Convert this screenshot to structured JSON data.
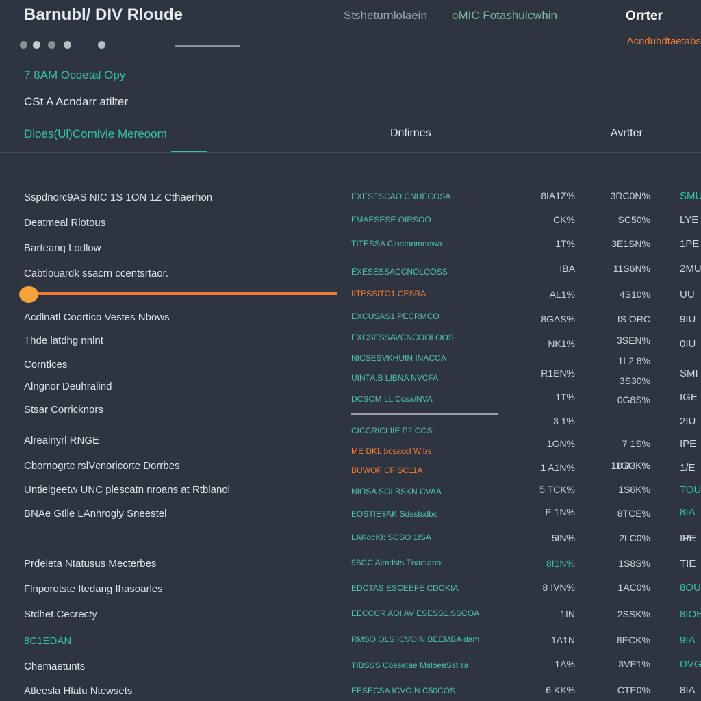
{
  "header": {
    "title": "Barnubl/ DIV Rloude",
    "nav": [
      "Stsheturnlolaein",
      "oMIC Fotashulcwhin",
      "Orrter"
    ],
    "action": "Acnduhdtaetabs"
  },
  "summary": [
    "7 8AM Ocoetal Opy",
    "CSt A Acndarr atilter"
  ],
  "tabs": [
    "Dloes(Ul)Comivle Mereoom",
    "Dnfirnes",
    "Avrtter"
  ],
  "rows": [
    {
      "label": "Sspdnorc9AS NIC 1S 1ON 1Z Cthaerhon",
      "code": "EXESESCAO CNHECOSA",
      "v1": "8IA1Z%",
      "v2": "3RC0N%",
      "v3": "SMU"
    },
    {
      "label": "Deatmeal Rlotous",
      "code": "FMAESESE OIRSOO",
      "v1": "CK%",
      "v2": "SC50%",
      "v3": "LYE"
    },
    {
      "label": "Barteanq Lodlow",
      "code": "TITESSA Cloatanmoowa",
      "v1": "1T%",
      "v2": "3E1SN%",
      "v3": "1PE"
    },
    {
      "label": "Cabtlouardk ssacrn ccentsrtaor.",
      "code": "EXESESSACCNOLOOSS",
      "v1": "IBA",
      "v2": "11S6N%",
      "v3": "2MU"
    },
    {
      "code": "IITESSITO1 CESRA",
      "v1": "AL1%",
      "v2": "4S10%",
      "v3": "UU"
    },
    {
      "label": "Acdlnatl Coortico Vestes Nbows",
      "code": "EXCUSAS1 PECRMCO",
      "v1": "8GAS%",
      "v2": "IS ORC",
      "v3": "9IU"
    },
    {
      "label": "Thde latdhg nnlnt",
      "code": "EXCSESSAVCNCOOLOOS",
      "v1": "NK1%",
      "v2": "3SEN%",
      "v3": "0IU"
    },
    {
      "label": "Corntlces",
      "code": "NICSESVKHUIN INACCA",
      "v1": "R1EN%",
      "v2": "1L2 8%",
      "v3": "SMI"
    },
    {
      "label": "Alngnor Deuhralind",
      "code": "UINTA.B LIBNA NVCFA",
      "v1": "1T%",
      "v2": "3S30%",
      "v3": "IGE"
    },
    {
      "label": "Stsar Corricknors",
      "code": "DCSOM LL Ccsa/NVA",
      "v1": "3 1%",
      "v2": "0G8S%",
      "v3": "2IU"
    },
    {
      "label": "Alrealnyrl RNGE",
      "code": "CICCRICLIIE P2 COS",
      "v1": "1GN%",
      "v2": "7 1S%",
      "v3": "IPE"
    },
    {
      "label": "Cbornogrtc rslVcnoricorte Dorrbes",
      "code": "ME DKL bcsaccl Wlbs",
      "v1": "1 A1N%",
      "v2": "0.83K%",
      "v3": "1/E"
    },
    {
      "label": "Untielgeetw UNC plescatn nroans at Rtblanol",
      "code": "BUWOF CF SC11A",
      "v1": "5 TCK%",
      "v2": "11GCK%",
      "v3": "TOU"
    },
    {
      "label": "BNAe Gtlle LAnhrogly Sneestel",
      "code": "NIOSA SOI BSKN CVAA",
      "v1": "E 1N%",
      "v2": "1S6K%",
      "v3": "8IA"
    },
    {
      "code": "EOSTIEYAK Sdsstsdbo",
      "v1": "5IN%",
      "v2": "8TCE%",
      "v3": "IPE"
    },
    {
      "code": "LAKocKI: SCSO 1ISA",
      "v1": "5IN%",
      "v2": "2LC0%",
      "v3": "TIE"
    },
    {
      "label": "Prdeleta Ntatusus Mecterbes",
      "code": "9SCC Aimdsts Tnaetanol",
      "v1": "8I1N%",
      "v2": "1S8S%",
      "v3": "TIE"
    },
    {
      "label": "Flnporotste Itedang Ihasoarles",
      "code": "EDCTAS ESCEEFE CDOKIA",
      "v1": "8 IVN%",
      "v2": "1AC0%",
      "v3": "8OU"
    },
    {
      "label": "Stdhet Cecrecty",
      "code": "EECCCR AOI AV ESESS1.SSCOA",
      "v1": "1IN",
      "v2": "2SSK%",
      "v3": "8IOE"
    },
    {
      "label": "8C1EDAN",
      "code": "RMSO OLS ICVOIN BEEMBA dam",
      "v1": "1A1N",
      "v2": "8ECK%",
      "v3": "9IA"
    },
    {
      "label": "Chemaetunts",
      "code": "TIBSSS Cossetae MsloeaSstisa",
      "v1": "1A%",
      "v2": "3VE1%",
      "v3": "DVG"
    },
    {
      "label": "Atleesla Hlatu Ntewsets",
      "code": "EESECSA ICVOIN C50COS",
      "v1": "6 KK%",
      "v2": "CTE0%",
      "v3": "8IA"
    }
  ]
}
